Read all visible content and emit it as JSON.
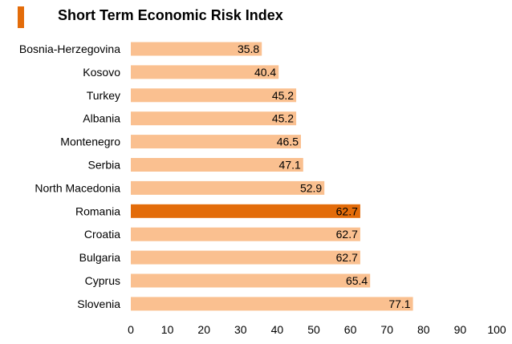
{
  "chart_data": {
    "type": "bar",
    "orientation": "horizontal",
    "title": "Short Term Economic Risk Index",
    "categories": [
      "Bosnia-Herzegovina",
      "Kosovo",
      "Turkey",
      "Albania",
      "Montenegro",
      "Serbia",
      "North Macedonia",
      "Romania",
      "Croatia",
      "Bulgaria",
      "Cyprus",
      "Slovenia"
    ],
    "values": [
      35.8,
      40.4,
      45.2,
      45.2,
      46.5,
      47.1,
      52.9,
      62.7,
      62.7,
      62.7,
      65.4,
      77.1
    ],
    "value_labels": [
      "35.8",
      "40.4",
      "45.2",
      "45.2",
      "46.5",
      "47.1",
      "52.9",
      "62.7",
      "62.7",
      "62.7",
      "65.4",
      "77.1"
    ],
    "highlight": "Romania",
    "xlim": [
      0,
      100
    ],
    "xticks": [
      "0",
      "10",
      "20",
      "30",
      "40",
      "50",
      "60",
      "70",
      "80",
      "90",
      "100"
    ],
    "grid": false,
    "legend": "none",
    "colors": {
      "bar": "#fac090",
      "highlight": "#e36c0a",
      "title_accent": "#e36c0a",
      "text": "#000000"
    }
  }
}
